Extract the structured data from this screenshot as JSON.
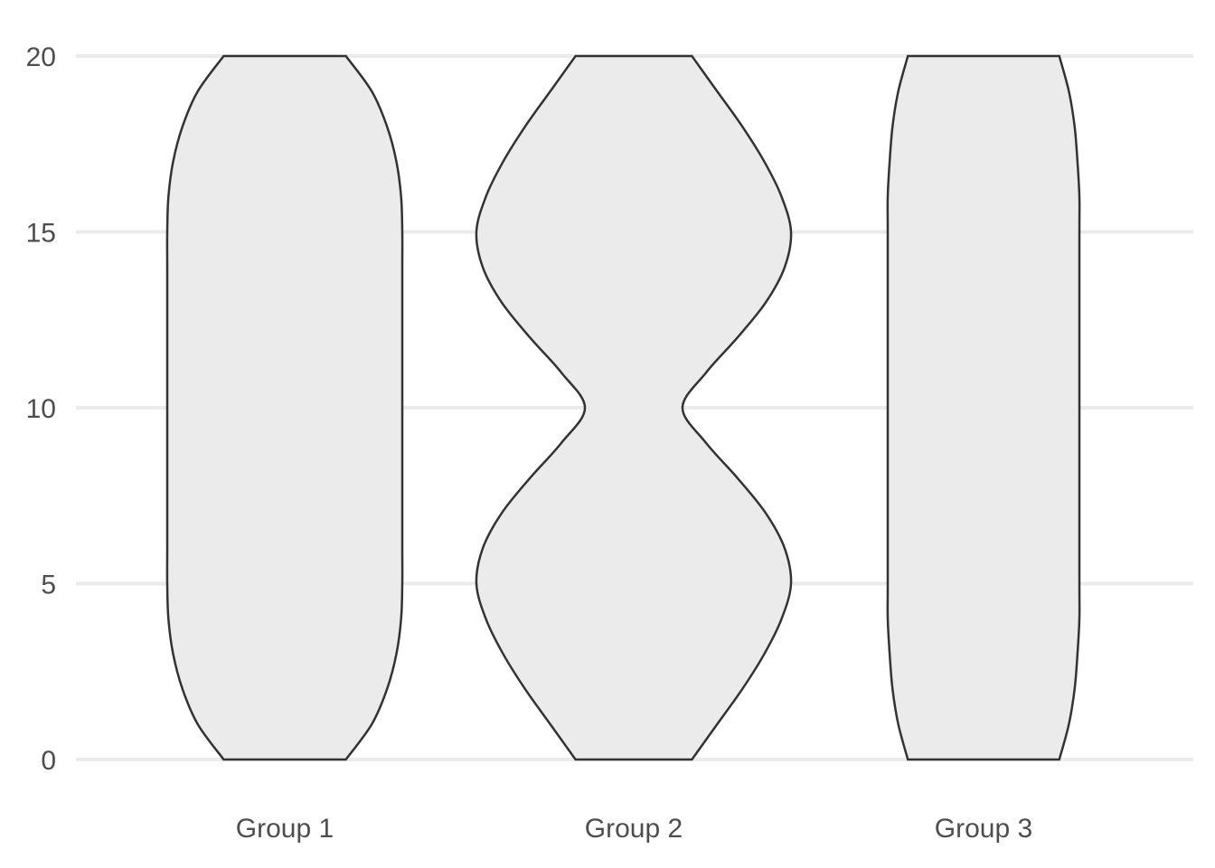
{
  "chart_data": {
    "type": "violin",
    "title": "",
    "xlabel": "",
    "ylabel": "",
    "ylim": [
      0,
      20
    ],
    "y_ticks": [
      0,
      5,
      10,
      15,
      20
    ],
    "y_tick_labels": [
      "0",
      "5",
      "10",
      "15",
      "20"
    ],
    "grid": "horizontal",
    "categories": [
      "Group 1",
      "Group 2",
      "Group 3"
    ],
    "fill_color": "#ebebeb",
    "stroke_color": "#333333",
    "grid_color": "#ebebeb",
    "series": [
      {
        "category": "Group 1",
        "y": [
          0,
          1,
          2,
          3,
          4,
          5,
          6,
          8,
          10,
          12,
          14,
          15,
          16,
          17,
          18,
          19,
          20
        ],
        "relative_width": [
          0.52,
          0.74,
          0.87,
          0.95,
          0.99,
          1.0,
          1.0,
          1.0,
          1.0,
          1.0,
          1.0,
          1.0,
          0.99,
          0.95,
          0.87,
          0.74,
          0.52
        ]
      },
      {
        "category": "Group 2",
        "y": [
          0,
          1,
          2,
          3,
          4,
          5,
          6,
          7,
          8,
          9,
          10,
          11,
          12,
          13,
          14,
          15,
          16,
          17,
          18,
          19,
          20
        ],
        "relative_width": [
          0.37,
          0.53,
          0.69,
          0.83,
          0.94,
          1.0,
          0.96,
          0.84,
          0.66,
          0.46,
          0.31,
          0.46,
          0.66,
          0.84,
          0.96,
          1.0,
          0.94,
          0.83,
          0.69,
          0.53,
          0.37
        ]
      },
      {
        "category": "Group 3",
        "y": [
          0,
          1,
          2,
          3,
          4,
          5,
          8,
          10,
          12,
          15,
          16,
          17,
          18,
          19,
          20
        ],
        "relative_width": [
          0.79,
          0.89,
          0.95,
          0.98,
          1.0,
          1.0,
          1.0,
          1.0,
          1.0,
          1.0,
          1.0,
          0.98,
          0.95,
          0.89,
          0.79
        ]
      }
    ]
  }
}
